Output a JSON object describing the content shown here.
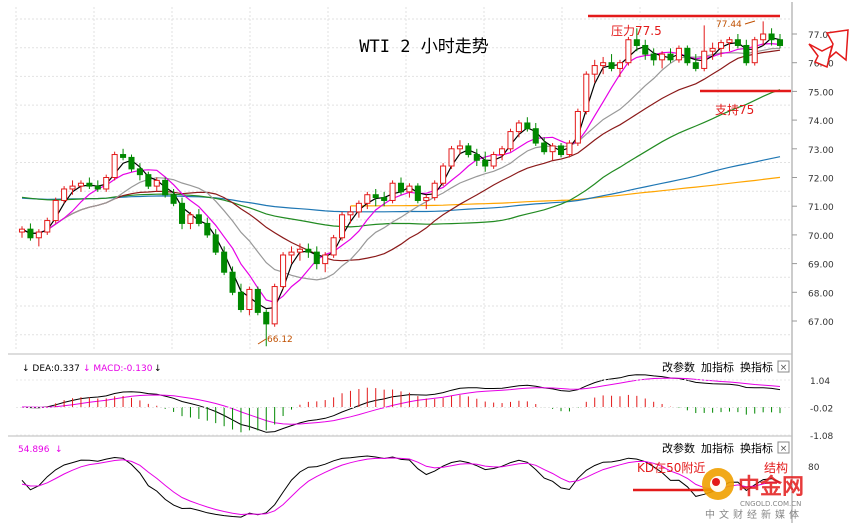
{
  "chart_data": [
    {
      "type": "candlestick",
      "title": "WTI 2 小时走势",
      "ylim": [
        66.0,
        77.5
      ],
      "y_ticks": [
        "77.00",
        "76.00",
        "75.00",
        "74.00",
        "73.00",
        "72.00",
        "71.00",
        "70.00",
        "69.00",
        "68.00",
        "67.00"
      ],
      "grid": true,
      "bars": [
        [
          70.1,
          70.3,
          69.9,
          70.2
        ],
        [
          70.2,
          70.4,
          69.8,
          69.9
        ],
        [
          69.9,
          70.2,
          69.6,
          70.1
        ],
        [
          70.1,
          70.6,
          70.0,
          70.5
        ],
        [
          70.5,
          71.3,
          70.4,
          71.2
        ],
        [
          71.2,
          71.7,
          71.1,
          71.6
        ],
        [
          71.6,
          71.9,
          71.4,
          71.7
        ],
        [
          71.7,
          71.9,
          71.5,
          71.8
        ],
        [
          71.8,
          72.0,
          71.6,
          71.7
        ],
        [
          71.7,
          71.9,
          71.5,
          71.6
        ],
        [
          71.6,
          72.1,
          71.5,
          72.0
        ],
        [
          72.0,
          72.9,
          71.9,
          72.8
        ],
        [
          72.8,
          73.0,
          72.6,
          72.7
        ],
        [
          72.7,
          72.8,
          72.2,
          72.3
        ],
        [
          72.3,
          72.5,
          71.9,
          72.1
        ],
        [
          72.1,
          72.2,
          71.6,
          71.7
        ],
        [
          71.7,
          72.0,
          71.5,
          71.9
        ],
        [
          71.9,
          72.0,
          71.3,
          71.4
        ],
        [
          71.4,
          71.6,
          71.0,
          71.1
        ],
        [
          71.1,
          71.3,
          70.2,
          70.4
        ],
        [
          70.4,
          70.8,
          70.2,
          70.7
        ],
        [
          70.7,
          70.9,
          70.3,
          70.4
        ],
        [
          70.4,
          70.6,
          69.9,
          70.0
        ],
        [
          70.0,
          70.2,
          69.3,
          69.4
        ],
        [
          69.4,
          69.6,
          68.6,
          68.7
        ],
        [
          68.7,
          68.9,
          67.9,
          68.0
        ],
        [
          68.0,
          68.3,
          67.3,
          67.4
        ],
        [
          67.4,
          68.2,
          67.2,
          68.1
        ],
        [
          68.1,
          68.2,
          67.2,
          67.3
        ],
        [
          67.3,
          67.4,
          66.12,
          66.9
        ],
        [
          66.9,
          68.3,
          66.8,
          68.2
        ],
        [
          68.2,
          69.4,
          68.1,
          69.3
        ],
        [
          69.3,
          69.6,
          69.0,
          69.4
        ],
        [
          69.4,
          69.7,
          69.1,
          69.5
        ],
        [
          69.5,
          69.7,
          69.2,
          69.4
        ],
        [
          69.4,
          69.6,
          68.8,
          69.0
        ],
        [
          69.0,
          69.4,
          68.7,
          69.3
        ],
        [
          69.3,
          70.0,
          69.2,
          69.9
        ],
        [
          69.9,
          70.8,
          69.8,
          70.7
        ],
        [
          70.7,
          71.0,
          70.4,
          70.8
        ],
        [
          70.8,
          71.2,
          70.6,
          71.1
        ],
        [
          71.1,
          71.5,
          70.9,
          71.4
        ],
        [
          71.4,
          71.6,
          71.0,
          71.3
        ],
        [
          71.3,
          71.5,
          71.0,
          71.2
        ],
        [
          71.2,
          71.9,
          71.1,
          71.8
        ],
        [
          71.8,
          72.0,
          71.4,
          71.5
        ],
        [
          71.5,
          71.8,
          71.3,
          71.7
        ],
        [
          71.7,
          71.8,
          71.1,
          71.2
        ],
        [
          71.2,
          71.4,
          70.9,
          71.3
        ],
        [
          71.3,
          71.9,
          71.2,
          71.8
        ],
        [
          71.8,
          72.5,
          71.7,
          72.4
        ],
        [
          72.4,
          73.1,
          72.3,
          73.0
        ],
        [
          73.0,
          73.3,
          72.8,
          73.1
        ],
        [
          73.1,
          73.2,
          72.7,
          72.8
        ],
        [
          72.8,
          73.0,
          72.4,
          72.6
        ],
        [
          72.6,
          72.9,
          72.2,
          72.4
        ],
        [
          72.4,
          72.9,
          72.3,
          72.8
        ],
        [
          72.8,
          73.1,
          72.6,
          73.0
        ],
        [
          73.0,
          73.7,
          72.9,
          73.6
        ],
        [
          73.6,
          74.0,
          73.4,
          73.9
        ],
        [
          73.9,
          74.1,
          73.6,
          73.7
        ],
        [
          73.7,
          73.9,
          73.1,
          73.2
        ],
        [
          73.2,
          73.4,
          72.8,
          72.9
        ],
        [
          72.9,
          73.2,
          72.6,
          73.1
        ],
        [
          73.1,
          73.2,
          72.7,
          72.8
        ],
        [
          72.8,
          73.3,
          72.7,
          73.2
        ],
        [
          73.2,
          74.4,
          73.1,
          74.3
        ],
        [
          74.3,
          75.7,
          74.2,
          75.6
        ],
        [
          75.6,
          76.1,
          75.3,
          75.9
        ],
        [
          75.9,
          76.2,
          75.6,
          76.0
        ],
        [
          76.0,
          76.3,
          75.7,
          75.8
        ],
        [
          75.8,
          76.1,
          75.5,
          76.0
        ],
        [
          76.0,
          76.9,
          75.9,
          76.8
        ],
        [
          76.8,
          77.2,
          76.4,
          76.6
        ],
        [
          76.6,
          76.8,
          76.1,
          76.3
        ],
        [
          76.3,
          76.5,
          75.9,
          76.1
        ],
        [
          76.1,
          76.4,
          75.8,
          76.3
        ],
        [
          76.3,
          76.5,
          76.0,
          76.1
        ],
        [
          76.1,
          76.6,
          76.0,
          76.5
        ],
        [
          76.5,
          76.6,
          75.9,
          76.0
        ],
        [
          76.0,
          76.3,
          75.7,
          75.8
        ],
        [
          75.8,
          77.3,
          75.7,
          76.4
        ],
        [
          76.4,
          76.7,
          76.1,
          76.5
        ],
        [
          76.5,
          76.8,
          76.2,
          76.7
        ],
        [
          76.7,
          76.9,
          76.4,
          76.8
        ],
        [
          76.8,
          77.0,
          76.5,
          76.6
        ],
        [
          76.6,
          76.8,
          75.9,
          76.0
        ],
        [
          76.0,
          76.9,
          75.9,
          76.8
        ],
        [
          76.8,
          77.44,
          76.6,
          77.0
        ],
        [
          77.0,
          77.2,
          76.6,
          76.8
        ],
        [
          76.8,
          77.0,
          76.5,
          76.6
        ]
      ],
      "low_label": "66.12",
      "high_label": "77.44",
      "resistance": {
        "label": "压力77.5"
      },
      "support": {
        "label": "支持75"
      },
      "colors": {
        "up": "#e31a1a",
        "down": "#008800",
        "ma5": "#000000",
        "ma10": "#e600e6",
        "ma20": "#999999",
        "ma30": "#8b1a1a",
        "ma60": "#228b22",
        "ma120": "#1f77b4",
        "ma250": "#ffa500"
      }
    },
    {
      "type": "macd",
      "legend": [
        "↓ DEA:0.337",
        "↓ MACD:-0.130",
        "↓"
      ],
      "y_ticks": [
        "1.04",
        "-0.02",
        "-1.08"
      ],
      "buttons": [
        "改参数",
        "加指标",
        "换指标",
        "×"
      ]
    },
    {
      "type": "kd",
      "legend": [
        "54.896",
        "↓"
      ],
      "y_ticks": [
        "80"
      ],
      "note": "KD在50附近",
      "note_tail": "结构",
      "buttons": [
        "改参数",
        "加指标",
        "换指标",
        "×"
      ]
    }
  ],
  "watermark": {
    "logo": "中金网",
    "site": "CNGOLD.COM.CN",
    "slogan": "中文财经新媒体"
  }
}
